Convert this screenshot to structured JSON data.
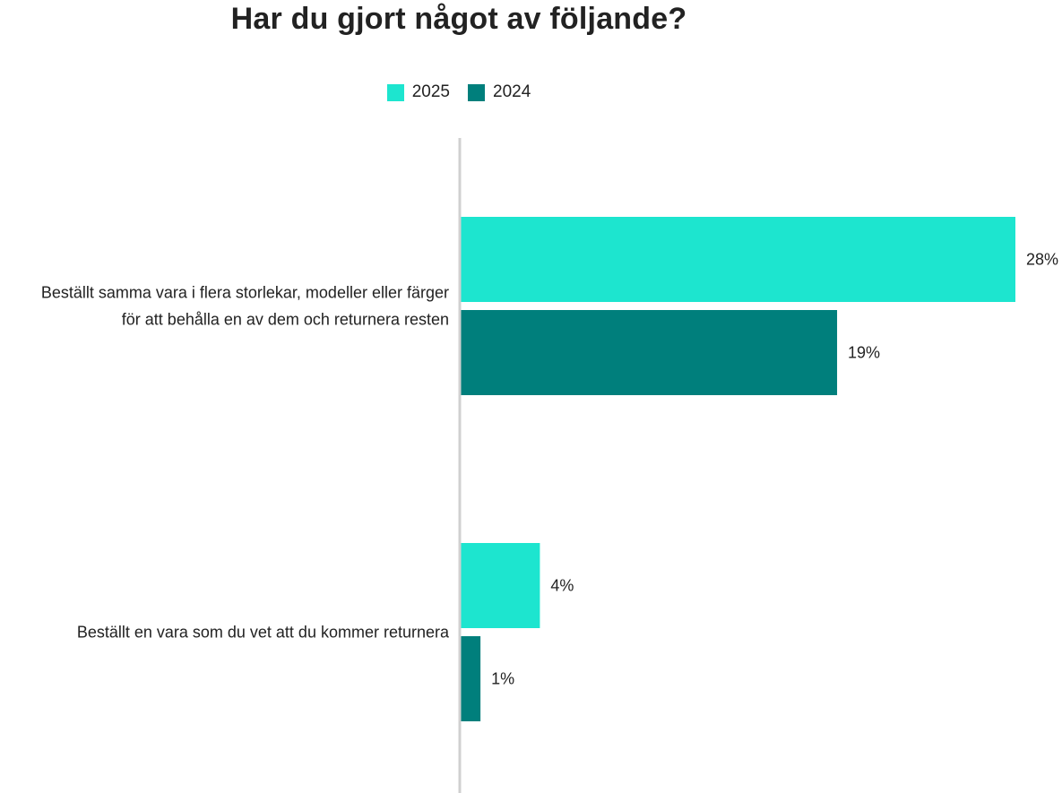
{
  "chart_data": {
    "type": "bar",
    "orientation": "horizontal",
    "title": "Har du gjort något av följande?",
    "categories": [
      [
        "Beställt samma vara i flera storlekar, modeller eller färger",
        "för att behålla en av dem och returnera resten"
      ],
      [
        "Beställt en vara som du vet att du kommer returnera"
      ]
    ],
    "series": [
      {
        "name": "2025",
        "color": "#1DE5CF",
        "values": [
          28,
          4
        ],
        "labels": [
          "28%",
          "4%"
        ]
      },
      {
        "name": "2024",
        "color": "#007F7C",
        "values": [
          19,
          1
        ],
        "labels": [
          "19%",
          "1%"
        ]
      }
    ],
    "xlim": [
      0,
      28
    ],
    "legend_position": "top-center",
    "grid": false
  }
}
